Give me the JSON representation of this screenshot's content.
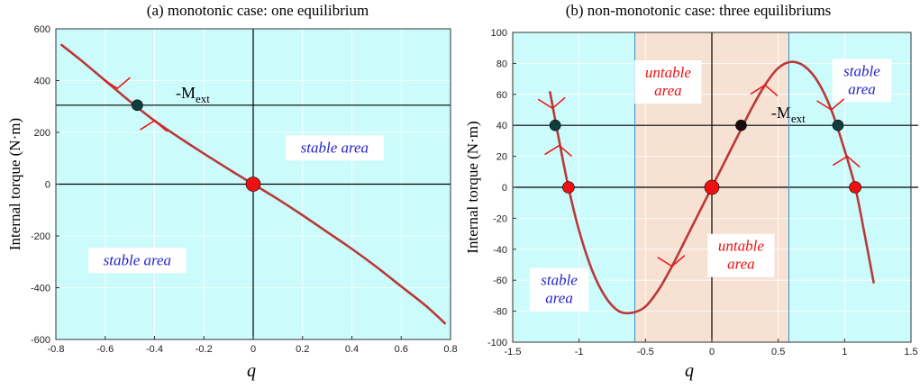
{
  "chart_data": [
    {
      "type": "line",
      "title": "(a) monotonic case: one equilibrium",
      "xlabel": "q",
      "ylabel": "Internal torque (N·m)",
      "xlim": [
        -0.8,
        0.8
      ],
      "ylim": [
        -600,
        600
      ],
      "xticks": [
        -0.8,
        -0.6,
        -0.4,
        -0.2,
        0,
        0.2,
        0.4,
        0.6,
        0.8
      ],
      "xtick_labels": [
        "-0.8",
        "-0.6",
        "-0.4",
        "-0.2",
        "0",
        "0.2",
        "0.4",
        "0.6",
        "0.8"
      ],
      "yticks": [
        600,
        400,
        200,
        0,
        -200,
        -400,
        -600
      ],
      "ytick_labels": [
        "600",
        "400",
        "200",
        "0",
        "-200",
        "-400",
        "-600"
      ],
      "grid": true,
      "series": [
        {
          "color": "#b83a3a",
          "x": [
            -0.78,
            -0.7,
            -0.6,
            -0.5,
            -0.4,
            -0.3,
            -0.2,
            -0.1,
            0,
            0.1,
            0.2,
            0.3,
            0.4,
            0.5,
            0.6,
            0.7,
            0.78
          ],
          "y": [
            540,
            480,
            400,
            320,
            245,
            180,
            118,
            58,
            0,
            -58,
            -120,
            -185,
            -250,
            -320,
            -395,
            -470,
            -540
          ]
        }
      ],
      "reference_lines": [
        {
          "axis": "y",
          "value": 305,
          "label": "-M",
          "label_sub": "ext"
        },
        {
          "axis": "y",
          "value": 0
        },
        {
          "axis": "x",
          "value": 0
        }
      ],
      "points": [
        {
          "x": -0.47,
          "y": 305,
          "color": "#0d3d3d",
          "r": 6
        },
        {
          "x": 0,
          "y": 0,
          "color": "#ee1111",
          "r": 8
        }
      ],
      "arrows": [
        {
          "x": -0.55,
          "y": 370,
          "dir": "down"
        },
        {
          "x": -0.4,
          "y": 245,
          "dir": "up"
        }
      ],
      "regions": [
        {
          "x0": -0.8,
          "x1": 0.8,
          "color": "#ccfbfb"
        }
      ],
      "annotations": [
        {
          "text": "stable area",
          "x": 0.33,
          "y": 140,
          "color": "#2222cc"
        },
        {
          "text": "stable area",
          "x": -0.47,
          "y": -295,
          "color": "#2222cc"
        }
      ]
    },
    {
      "type": "line",
      "title": "(b) non-monotonic case: three equilibriums",
      "xlabel": "q",
      "ylabel": "Internal torque (N·m)",
      "xlim": [
        -1.5,
        1.5
      ],
      "ylim": [
        -100,
        100
      ],
      "xticks": [
        -1.5,
        -1,
        -0.5,
        0,
        0.5,
        1,
        1.5
      ],
      "xtick_labels": [
        "-1.5",
        "-1",
        "-0.5",
        "0",
        "0.5",
        "1",
        "1.5"
      ],
      "yticks": [
        100,
        80,
        60,
        40,
        20,
        0,
        -20,
        -40,
        -60,
        -80,
        -100
      ],
      "ytick_labels": [
        "100",
        "80",
        "60",
        "40",
        "20",
        "0",
        "-20",
        "-40",
        "-60",
        "-80",
        "-100"
      ],
      "grid": true,
      "series": [
        {
          "color": "#b83a3a",
          "x": [
            -1.22,
            -1.15,
            -1.08,
            -1,
            -0.9,
            -0.8,
            -0.7,
            -0.6,
            -0.5,
            -0.4,
            -0.3,
            -0.2,
            -0.1,
            0,
            0.1,
            0.2,
            0.3,
            0.4,
            0.5,
            0.6,
            0.7,
            0.8,
            0.9,
            1,
            1.08,
            1.15,
            1.22
          ],
          "y": [
            62,
            30,
            0,
            -28,
            -54,
            -71,
            -80,
            -81,
            -77,
            -66,
            -51,
            -34,
            -17,
            0,
            17,
            34,
            51,
            66,
            77,
            81,
            78,
            68,
            50,
            24,
            0,
            -30,
            -62
          ]
        }
      ],
      "reference_lines": [
        {
          "axis": "y",
          "value": 40,
          "label": "-M",
          "label_sub": "ext"
        },
        {
          "axis": "y",
          "value": 0
        },
        {
          "axis": "x",
          "value": 0
        },
        {
          "axis": "x",
          "value": -0.58,
          "color": "#3a8fd0"
        },
        {
          "axis": "x",
          "value": 0.58,
          "color": "#3a8fd0"
        }
      ],
      "points": [
        {
          "x": -1.18,
          "y": 40,
          "color": "#0d3d3d",
          "r": 6
        },
        {
          "x": 0.22,
          "y": 40,
          "color": "#1a0d0d",
          "r": 6
        },
        {
          "x": 0.95,
          "y": 40,
          "color": "#0d3d3d",
          "r": 6
        },
        {
          "x": -1.08,
          "y": 0,
          "color": "#ee1111",
          "r": 6.5
        },
        {
          "x": 0,
          "y": 0,
          "color": "#ee1111",
          "r": 8
        },
        {
          "x": 1.08,
          "y": 0,
          "color": "#ee1111",
          "r": 6.5
        }
      ],
      "arrows": [
        {
          "x": -1.2,
          "y": 51,
          "dir": "down"
        },
        {
          "x": -1.15,
          "y": 27,
          "dir": "up"
        },
        {
          "x": -0.3,
          "y": -51,
          "dir": "down"
        },
        {
          "x": 0.4,
          "y": 66,
          "dir": "up"
        },
        {
          "x": 0.9,
          "y": 50,
          "dir": "down"
        },
        {
          "x": 1.02,
          "y": 20,
          "dir": "up"
        }
      ],
      "regions": [
        {
          "x0": -1.5,
          "x1": -0.58,
          "color": "#ccfbfb"
        },
        {
          "x0": -0.58,
          "x1": 0.58,
          "color": "#f7e1d3"
        },
        {
          "x0": 0.58,
          "x1": 1.5,
          "color": "#ccfbfb"
        }
      ],
      "annotations": [
        {
          "text": "untable",
          "line2": "area",
          "x": -0.33,
          "y": 68,
          "color": "#ee1111"
        },
        {
          "text": "untable",
          "line2": "area",
          "x": 0.22,
          "y": -44,
          "color": "#ee1111"
        },
        {
          "text": "stable",
          "line2": "area",
          "x": -1.15,
          "y": -66,
          "color": "#2222cc"
        },
        {
          "text": "stable",
          "line2": "area",
          "x": 1.13,
          "y": 69,
          "color": "#2222cc"
        }
      ]
    }
  ]
}
